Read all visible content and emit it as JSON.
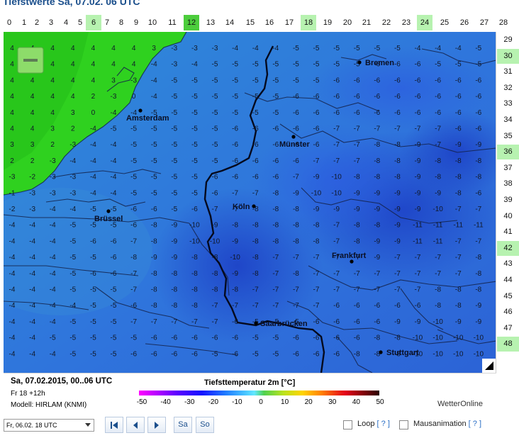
{
  "page": {
    "title": "Tiefstwerte Sa, 07.02. 06 UTC"
  },
  "hour_axis": {
    "labels": [
      "0",
      "1",
      "2",
      "3",
      "4",
      "5",
      "6",
      "7",
      "8",
      "9",
      "10",
      "11",
      "12",
      "13",
      "14",
      "15",
      "16",
      "17",
      "18",
      "19",
      "20",
      "21",
      "22",
      "23",
      "24",
      "25",
      "26",
      "27",
      "28"
    ],
    "highlighted": [
      "6",
      "18",
      "24"
    ],
    "selected": "12"
  },
  "row_axis": {
    "labels": [
      "29",
      "30",
      "31",
      "32",
      "33",
      "34",
      "35",
      "36",
      "37",
      "38",
      "39",
      "40",
      "41",
      "42",
      "43",
      "44",
      "45",
      "46",
      "47",
      "48"
    ],
    "highlighted": [
      "30",
      "36",
      "42",
      "48"
    ]
  },
  "map": {
    "zoom_out_icon": "minus-icon",
    "corner_icon": "expand-corner-icon",
    "cities": [
      {
        "name": "Bremen"
      },
      {
        "name": "Amsterdam"
      },
      {
        "name": "Münster"
      },
      {
        "name": "Köln"
      },
      {
        "name": "Brüssel"
      },
      {
        "name": "Frankfurt"
      },
      {
        "name": "Saarbrücken"
      },
      {
        "name": "Stuttgart"
      }
    ],
    "grid_values": [
      [
        "4",
        "4",
        "4",
        "4",
        "4",
        "4",
        "4",
        "3",
        "-3",
        "-3",
        "-3",
        "-4",
        "-4",
        "-4",
        "-5",
        "-5",
        "-5",
        "-5",
        "-5",
        "-5",
        "-4",
        "-4",
        "-4",
        "-5"
      ],
      [
        "4",
        "4",
        "4",
        "4",
        "4",
        "4",
        "4",
        "-4",
        "-3",
        "-4",
        "-5",
        "-5",
        "-5",
        "-5",
        "-5",
        "-5",
        "-5",
        "-5",
        "-6",
        "-6",
        "-6",
        "-5",
        "-5",
        "-5"
      ],
      [
        "4",
        "4",
        "4",
        "4",
        "4",
        "3",
        "-3",
        "-4",
        "-5",
        "-5",
        "-5",
        "-5",
        "-5",
        "-5",
        "-5",
        "-5",
        "-6",
        "-6",
        "-6",
        "-6",
        "-6",
        "-6",
        "-6",
        "-6"
      ],
      [
        "4",
        "4",
        "4",
        "4",
        "2",
        "-3",
        "0",
        "-4",
        "-5",
        "-5",
        "-5",
        "-5",
        "-5",
        "-5",
        "-6",
        "-6",
        "-6",
        "-6",
        "-6",
        "-6",
        "-6",
        "-6",
        "-6",
        "-6"
      ],
      [
        "4",
        "4",
        "4",
        "3",
        "0",
        "-4",
        "-4",
        "-5",
        "-5",
        "-5",
        "-5",
        "-5",
        "-5",
        "-5",
        "-6",
        "-6",
        "-6",
        "-6",
        "-6",
        "-6",
        "-6",
        "-6",
        "-6",
        "-6"
      ],
      [
        "4",
        "4",
        "3",
        "2",
        "-4",
        "-5",
        "-5",
        "-5",
        "-5",
        "-5",
        "-5",
        "-6",
        "-6",
        "-6",
        "-6",
        "-6",
        "-7",
        "-7",
        "-7",
        "-7",
        "-7",
        "-7",
        "-6",
        "-6"
      ],
      [
        "3",
        "3",
        "2",
        "-3",
        "-4",
        "-4",
        "-5",
        "-5",
        "-5",
        "-5",
        "-5",
        "-6",
        "-6",
        "-6",
        "-6",
        "-6",
        "-7",
        "-7",
        "-8",
        "-8",
        "-9",
        "-7",
        "-9",
        "-9"
      ],
      [
        "2",
        "2",
        "-3",
        "-4",
        "-4",
        "-4",
        "-5",
        "-5",
        "-5",
        "-5",
        "-5",
        "-6",
        "-6",
        "-6",
        "-6",
        "-7",
        "-7",
        "-7",
        "-8",
        "-8",
        "-9",
        "-8",
        "-8",
        "-8"
      ],
      [
        "-3",
        "-2",
        "-3",
        "-3",
        "-4",
        "-4",
        "-5",
        "-5",
        "-5",
        "-5",
        "-6",
        "-6",
        "-6",
        "-6",
        "-7",
        "-9",
        "-10",
        "-8",
        "-8",
        "-8",
        "-9",
        "-8",
        "-8",
        "-8"
      ],
      [
        "-1",
        "-3",
        "-3",
        "-3",
        "-4",
        "-4",
        "-5",
        "-5",
        "-5",
        "-5",
        "-6",
        "-7",
        "-7",
        "-8",
        "-9",
        "-10",
        "-10",
        "-9",
        "-9",
        "-9",
        "-9",
        "-9",
        "-8",
        "-6"
      ],
      [
        "-2",
        "-3",
        "-4",
        "-4",
        "-5",
        "-5",
        "-6",
        "-6",
        "-5",
        "-6",
        "-7",
        "-7",
        "-8",
        "-8",
        "-8",
        "-9",
        "-9",
        "-9",
        "-9",
        "-9",
        "-9",
        "-10",
        "-7",
        "-7"
      ],
      [
        "-4",
        "-4",
        "-4",
        "-5",
        "-5",
        "-5",
        "-6",
        "-8",
        "-9",
        "-10",
        "-9",
        "-8",
        "-8",
        "-8",
        "-8",
        "-8",
        "-7",
        "-8",
        "-8",
        "-9",
        "-11",
        "-11",
        "-11",
        "-11"
      ],
      [
        "-4",
        "-4",
        "-4",
        "-5",
        "-6",
        "-6",
        "-7",
        "-8",
        "-9",
        "-10",
        "-10",
        "-9",
        "-8",
        "-8",
        "-8",
        "-8",
        "-7",
        "-8",
        "-9",
        "-9",
        "-11",
        "-11",
        "-7",
        "-7"
      ],
      [
        "-4",
        "-4",
        "-4",
        "-5",
        "-5",
        "-6",
        "-8",
        "-9",
        "-9",
        "-8",
        "-8",
        "-10",
        "-8",
        "-7",
        "-7",
        "-7",
        "-7",
        "-7",
        "-9",
        "-7",
        "-7",
        "-7",
        "-7",
        "-8"
      ],
      [
        "-4",
        "-4",
        "-4",
        "-5",
        "-6",
        "-6",
        "-7",
        "-8",
        "-8",
        "-8",
        "-8",
        "-9",
        "-8",
        "-7",
        "-8",
        "-7",
        "-7",
        "-7",
        "-7",
        "-7",
        "-7",
        "-7",
        "-7",
        "-8"
      ],
      [
        "-4",
        "-4",
        "-4",
        "-5",
        "-5",
        "-5",
        "-7",
        "-8",
        "-8",
        "-8",
        "-8",
        "-8",
        "-7",
        "-7",
        "-7",
        "-7",
        "-7",
        "-7",
        "-7",
        "-7",
        "-7",
        "-8",
        "-8",
        "-8"
      ],
      [
        "-4",
        "-4",
        "-4",
        "-4",
        "-5",
        "-5",
        "-6",
        "-8",
        "-8",
        "-8",
        "-7",
        "-7",
        "-7",
        "-7",
        "-7",
        "-7",
        "-6",
        "-6",
        "-6",
        "-6",
        "-6",
        "-8",
        "-8",
        "-9"
      ],
      [
        "-4",
        "-4",
        "-4",
        "-5",
        "-5",
        "-5",
        "-7",
        "-7",
        "-7",
        "-7",
        "-7",
        "-6",
        "-5",
        "-5",
        "-5",
        "-6",
        "-6",
        "-6",
        "-6",
        "-9",
        "-9",
        "-10",
        "-9",
        "-9"
      ],
      [
        "-4",
        "-4",
        "-5",
        "-5",
        "-5",
        "-5",
        "-5",
        "-6",
        "-6",
        "-6",
        "-6",
        "-6",
        "-5",
        "-5",
        "-6",
        "-6",
        "-6",
        "-6",
        "-8",
        "-8",
        "-10",
        "-10",
        "-10",
        "-10"
      ],
      [
        "-4",
        "-4",
        "-4",
        "-5",
        "-5",
        "-5",
        "-6",
        "-6",
        "-6",
        "-6",
        "-5",
        "-6",
        "-5",
        "-5",
        "-6",
        "-6",
        "-6",
        "-8",
        "-8",
        "-8",
        "-10",
        "-10",
        "-10",
        "-10"
      ]
    ]
  },
  "legend": {
    "run_title": "Sa, 07.02.2015, 00..06 UTC",
    "run_step": "Fr 18 +12h",
    "model": "Modell: HIRLAM (KNMI)",
    "scale_title": "Tiefsttemperatur 2m [°C]",
    "scale_labels": [
      "-50",
      "-40",
      "-30",
      "-20",
      "-10",
      "0",
      "10",
      "20",
      "30",
      "40",
      "50"
    ],
    "brand": "WetterOnline"
  },
  "controls": {
    "time_select_value": "Fr, 06.02. 18 UTC",
    "first_icon": "skip-back-icon",
    "prev_icon": "triangle-left-icon",
    "next_icon": "triangle-right-icon",
    "sa_label": "Sa",
    "so_label": "So",
    "loop_label": "Loop",
    "mouse_label": "Mausanimation",
    "help_label": "[ ? ]"
  },
  "colors": {
    "title": "#1b4f8c",
    "sea_light": "#2fd11f",
    "land_blue": "#2f7bdf",
    "deep_blue": "#1c3fc9",
    "highlight": "#b7f2b0",
    "selected": "#4ccd3c"
  }
}
